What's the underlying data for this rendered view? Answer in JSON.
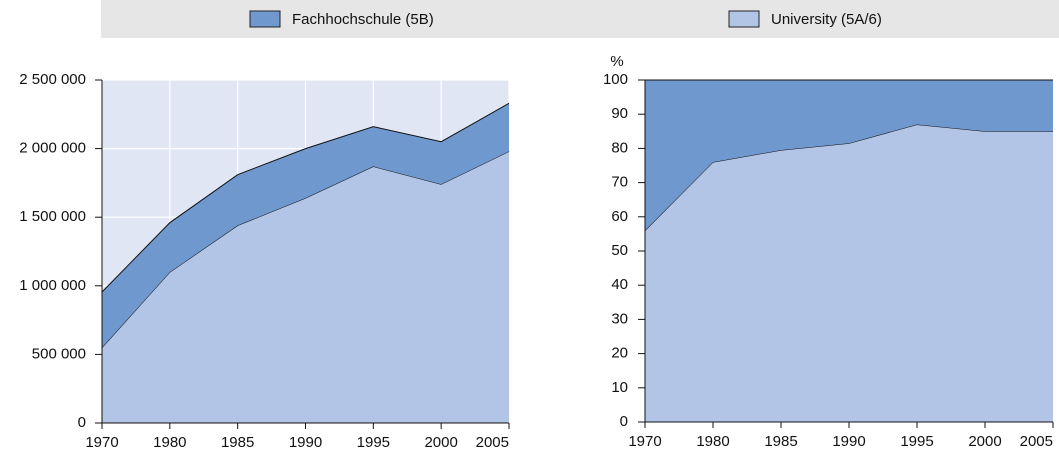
{
  "legend": "top",
  "chart_data": [
    {
      "type": "area",
      "stacked": true,
      "grid": true,
      "background": "#e1e6f5",
      "categories": [
        "1970",
        "1980",
        "1985",
        "1990",
        "1995",
        "2000",
        "2005"
      ],
      "series": [
        {
          "name": "University (5A/6)",
          "color": "#b3c5e6",
          "values": [
            550000,
            1100000,
            1440000,
            1640000,
            1870000,
            1740000,
            1980000
          ]
        },
        {
          "name": "Fachhochschule (5B)",
          "color": "#6f98cf",
          "values": [
            405000,
            360000,
            370000,
            360000,
            290000,
            310000,
            350000
          ]
        }
      ],
      "ylim": [
        0,
        2500000
      ],
      "yticks": [
        0,
        {
          "value": 500000,
          "label": "500 000"
        },
        {
          "value": 1000000,
          "label": "1 000 000"
        },
        {
          "value": 1500000,
          "label": "1 500 000"
        },
        {
          "value": 2000000,
          "label": "2 000 000"
        },
        {
          "value": 2500000,
          "label": "2 500 000"
        }
      ]
    },
    {
      "type": "area",
      "stacked": true,
      "grid": false,
      "background": "#e1e6f5",
      "ylabel": "%",
      "categories": [
        "1970",
        "1980",
        "1985",
        "1990",
        "1995",
        "2000",
        "2005"
      ],
      "series": [
        {
          "color": "#b3c5e6",
          "values": [
            56,
            76,
            79.5,
            81.5,
            87,
            85,
            85
          ]
        },
        {
          "color": "#6f98cf",
          "values": [
            44,
            24,
            20.5,
            18.5,
            13,
            15,
            15
          ]
        }
      ],
      "ylim": [
        0,
        100
      ],
      "yticks": [
        0,
        10,
        20,
        30,
        40,
        50,
        60,
        70,
        80,
        90,
        100
      ]
    }
  ]
}
